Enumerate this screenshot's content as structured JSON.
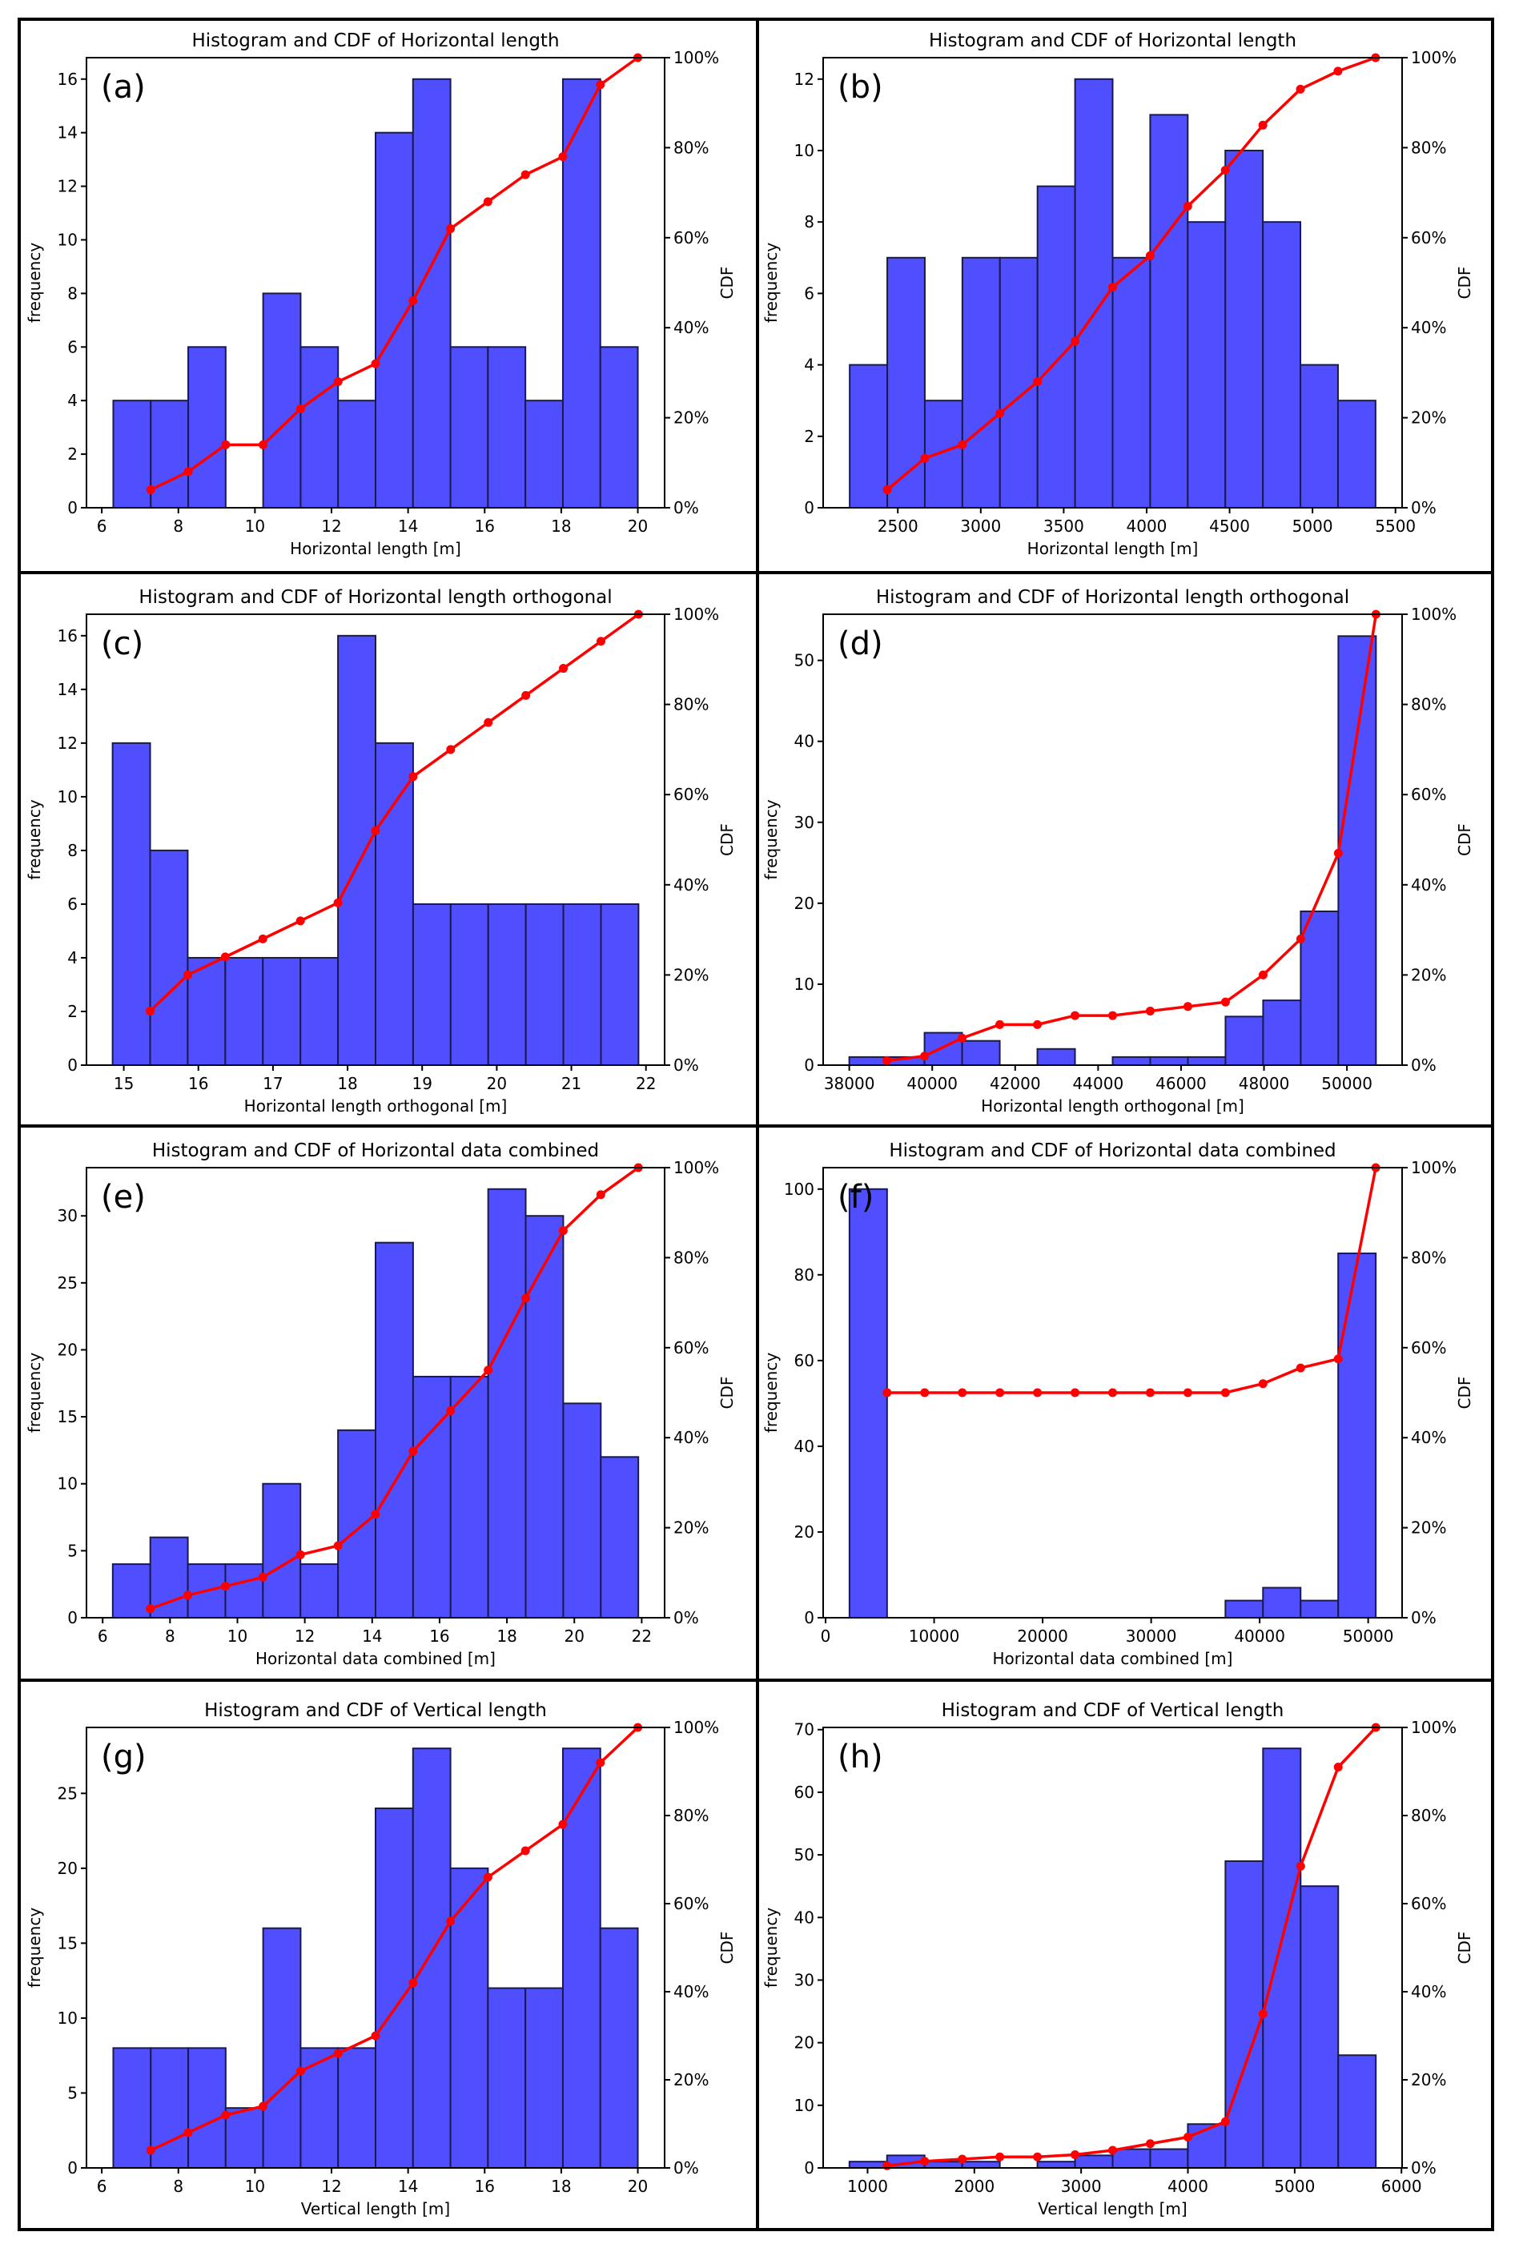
{
  "figure": {
    "bar_color": "#4f4fff",
    "bar_edge_color": "#1a1a4a",
    "cdf_color": "#ff0000"
  },
  "chart_data": [
    {
      "type": "bar",
      "panel_label": "(a)",
      "title": "Histogram and CDF of Horizontal length",
      "xlabel": "Horizontal length [m]",
      "ylabel": "frequency",
      "y2label": "CDF",
      "bin_range": [
        6.3,
        20.0
      ],
      "values": [
        4,
        4,
        6,
        0,
        8,
        6,
        4,
        14,
        16,
        6,
        6,
        4,
        16,
        6
      ],
      "xlim": [
        5.6,
        20.7
      ],
      "ylim": [
        0,
        16.8
      ],
      "xticks": [
        6,
        8,
        10,
        12,
        14,
        16,
        18,
        20
      ],
      "yticks": [
        0,
        2,
        4,
        6,
        8,
        10,
        12,
        14,
        16
      ],
      "y2ticks": [
        "0%",
        "20%",
        "40%",
        "60%",
        "80%",
        "100%"
      ]
    },
    {
      "type": "bar",
      "panel_label": "(b)",
      "title": "Histogram and CDF of Horizontal length",
      "xlabel": "Horizontal length [m]",
      "ylabel": "frequency",
      "y2label": "CDF",
      "bin_range": [
        2210,
        5380
      ],
      "values": [
        4,
        7,
        3,
        7,
        7,
        9,
        12,
        7,
        11,
        8,
        10,
        8,
        4,
        3
      ],
      "xlim": [
        2050,
        5540
      ],
      "ylim": [
        0,
        12.6
      ],
      "xticks": [
        2500,
        3000,
        3500,
        4000,
        4500,
        5000,
        5500
      ],
      "yticks": [
        0,
        2,
        4,
        6,
        8,
        10,
        12
      ],
      "y2ticks": [
        "0%",
        "20%",
        "40%",
        "60%",
        "80%",
        "100%"
      ]
    },
    {
      "type": "bar",
      "panel_label": "(c)",
      "title": "Histogram and CDF of Horizontal length orthogonal",
      "xlabel": "Horizontal length orthogonal [m]",
      "ylabel": "frequency",
      "y2label": "CDF",
      "bin_range": [
        14.85,
        21.9
      ],
      "values": [
        12,
        8,
        4,
        4,
        4,
        4,
        16,
        12,
        6,
        6,
        6,
        6,
        6,
        6
      ],
      "xlim": [
        14.5,
        22.25
      ],
      "ylim": [
        0,
        16.8
      ],
      "xticks": [
        15,
        16,
        17,
        18,
        19,
        20,
        21,
        22
      ],
      "yticks": [
        0,
        2,
        4,
        6,
        8,
        10,
        12,
        14,
        16
      ],
      "y2ticks": [
        "0%",
        "20%",
        "40%",
        "60%",
        "80%",
        "100%"
      ]
    },
    {
      "type": "bar",
      "panel_label": "(d)",
      "title": "Histogram and CDF of Horizontal length orthogonal",
      "xlabel": "Horizontal length orthogonal [m]",
      "ylabel": "frequency",
      "y2label": "CDF",
      "bin_range": [
        38000,
        50700
      ],
      "values": [
        1,
        1,
        4,
        3,
        0,
        2,
        0,
        1,
        1,
        1,
        6,
        8,
        19,
        53
      ],
      "xlim": [
        37370,
        51330
      ],
      "ylim": [
        0,
        55.7
      ],
      "xticks": [
        38000,
        40000,
        42000,
        44000,
        46000,
        48000,
        50000
      ],
      "yticks": [
        0,
        10,
        20,
        30,
        40,
        50
      ],
      "y2ticks": [
        "0%",
        "20%",
        "40%",
        "60%",
        "80%",
        "100%"
      ]
    },
    {
      "type": "bar",
      "panel_label": "(e)",
      "title": "Histogram and CDF of Horizontal data combined",
      "xlabel": "Horizontal data combined [m]",
      "ylabel": "frequency",
      "y2label": "CDF",
      "bin_range": [
        6.3,
        21.9
      ],
      "values": [
        4,
        6,
        4,
        4,
        10,
        4,
        14,
        28,
        18,
        18,
        32,
        30,
        16,
        12
      ],
      "xlim": [
        5.52,
        22.68
      ],
      "ylim": [
        0,
        33.6
      ],
      "xticks": [
        6,
        8,
        10,
        12,
        14,
        16,
        18,
        20,
        22
      ],
      "yticks": [
        0,
        5,
        10,
        15,
        20,
        25,
        30
      ],
      "y2ticks": [
        "0%",
        "20%",
        "40%",
        "60%",
        "80%",
        "100%"
      ]
    },
    {
      "type": "bar",
      "panel_label": "(f)",
      "title": "Histogram and CDF of Horizontal data combined",
      "xlabel": "Horizontal data combined [m]",
      "ylabel": "frequency",
      "y2label": "CDF",
      "bin_range": [
        2200,
        50700
      ],
      "values": [
        100,
        0,
        0,
        0,
        0,
        0,
        0,
        0,
        0,
        0,
        4,
        7,
        4,
        85
      ],
      "xlim": [
        -225,
        53125
      ],
      "ylim": [
        0,
        105
      ],
      "xticks": [
        0,
        10000,
        20000,
        30000,
        40000,
        50000
      ],
      "yticks": [
        0,
        20,
        40,
        60,
        80,
        100
      ],
      "y2ticks": [
        "0%",
        "20%",
        "40%",
        "60%",
        "80%",
        "100%"
      ]
    },
    {
      "type": "bar",
      "panel_label": "(g)",
      "title": "Histogram and CDF of Vertical length",
      "xlabel": "Vertical length [m]",
      "ylabel": "frequency",
      "y2label": "CDF",
      "bin_range": [
        6.3,
        20.0
      ],
      "values": [
        8,
        8,
        8,
        4,
        16,
        8,
        8,
        24,
        28,
        20,
        12,
        12,
        28,
        16
      ],
      "xlim": [
        5.6,
        20.7
      ],
      "ylim": [
        0,
        29.4
      ],
      "xticks": [
        6,
        8,
        10,
        12,
        14,
        16,
        18,
        20
      ],
      "yticks": [
        0,
        5,
        10,
        15,
        20,
        25
      ],
      "y2ticks": [
        "0%",
        "20%",
        "40%",
        "60%",
        "80%",
        "100%"
      ]
    },
    {
      "type": "bar",
      "panel_label": "(h)",
      "title": "Histogram and CDF of Vertical length",
      "xlabel": "Vertical length [m]",
      "ylabel": "frequency",
      "y2label": "CDF",
      "bin_range": [
        830,
        5760
      ],
      "values": [
        1,
        2,
        1,
        1,
        0,
        1,
        2,
        3,
        3,
        7,
        49,
        67,
        45,
        18
      ],
      "xlim": [
        584,
        6006
      ],
      "ylim": [
        0,
        70.35
      ],
      "xticks": [
        1000,
        2000,
        3000,
        4000,
        5000,
        6000
      ],
      "yticks": [
        0,
        10,
        20,
        30,
        40,
        50,
        60,
        70
      ],
      "y2ticks": [
        "0%",
        "20%",
        "40%",
        "60%",
        "80%",
        "100%"
      ]
    }
  ]
}
